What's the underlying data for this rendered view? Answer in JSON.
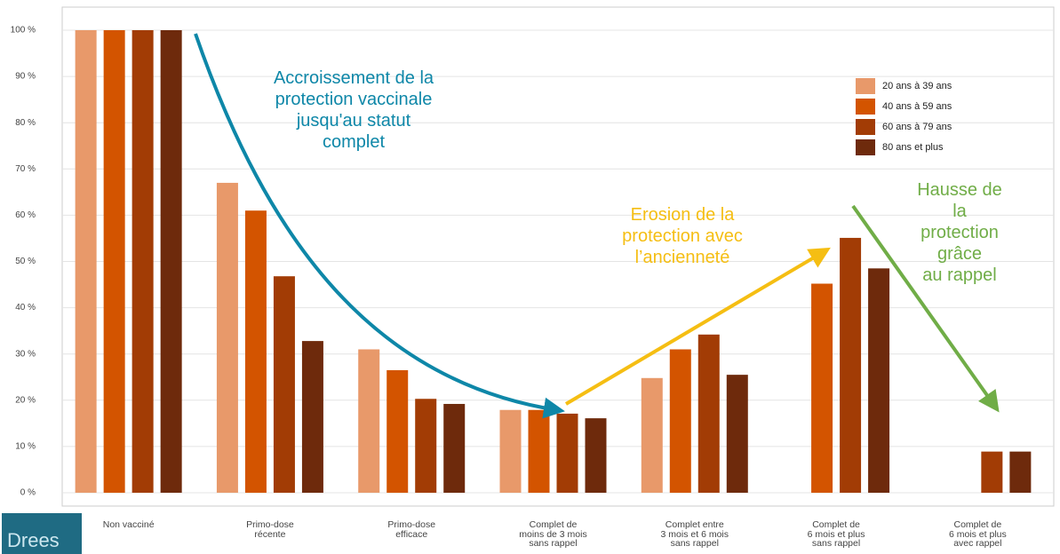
{
  "chart_data": {
    "type": "bar",
    "categories": [
      "Non vacciné",
      "Primo-dose\nrécente",
      "Primo-dose\nefficace",
      "Complet de\nmoins de 3 mois\nsans rappel",
      "Complet entre\n3 mois et 6 mois\nsans rappel",
      "Complet de\n6 mois et plus\nsans rappel",
      "Complet de\n6 mois et plus\navec rappel"
    ],
    "series": [
      {
        "name": "20 ans à 39 ans",
        "color": "#e8996a",
        "values": [
          100,
          67,
          31,
          17.9,
          24.8,
          null,
          null
        ]
      },
      {
        "name": "40 ans à 59 ans",
        "color": "#d35400",
        "values": [
          100,
          61,
          26.5,
          17.9,
          31,
          45.2,
          null
        ]
      },
      {
        "name": "60 ans à 79 ans",
        "color": "#a23c05",
        "values": [
          100,
          46.8,
          20.3,
          17.1,
          34.2,
          55.1,
          8.9
        ]
      },
      {
        "name": "80 ans et plus",
        "color": "#6e2a0c",
        "values": [
          100,
          32.8,
          19.2,
          16.1,
          25.5,
          48.5,
          8.9
        ]
      }
    ],
    "ylim": [
      0,
      100
    ],
    "yticks": [
      {
        "value": 0,
        "label": "0 %"
      },
      {
        "value": 10,
        "label": "10 %"
      },
      {
        "value": 20,
        "label": "20 %"
      },
      {
        "value": 30,
        "label": "30 %"
      },
      {
        "value": 40,
        "label": "40 %"
      },
      {
        "value": 50,
        "label": "50 %"
      },
      {
        "value": 60,
        "label": "60 %"
      },
      {
        "value": 70,
        "label": "70 %"
      },
      {
        "value": 80,
        "label": "80 %"
      },
      {
        "value": 90,
        "label": "90 %"
      },
      {
        "value": 100,
        "label": "100 %"
      }
    ],
    "grid": true,
    "legend": "top-right",
    "annotations": [
      {
        "text": "Accroissement de la\nprotection vaccinale\njusqu'au statut\ncomplet",
        "color": "#0e87a8"
      },
      {
        "text": "Erosion de la\nprotection avec\nl’ancienneté",
        "color": "#f5be13"
      },
      {
        "text": "Hausse de la\nprotection grâce\nau rappel",
        "color": "#70ad47"
      }
    ],
    "logo": "Drees"
  }
}
